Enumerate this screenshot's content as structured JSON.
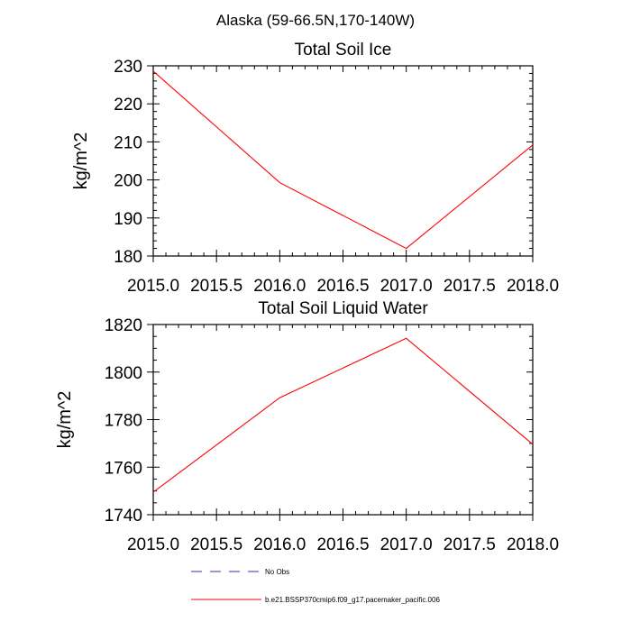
{
  "figure": {
    "suptitle": "Alaska (59-66.5N,170-140W)"
  },
  "chart_data": [
    {
      "type": "line",
      "title": "Total Soil Ice",
      "xlabel": "",
      "ylabel": "kg/m^2",
      "xlim": [
        2015.0,
        2018.0
      ],
      "ylim": [
        180,
        230
      ],
      "xticks": [
        "2015.0",
        "2015.5",
        "2016.0",
        "2016.5",
        "2017.0",
        "2017.5",
        "2018.0"
      ],
      "yticks": [
        "180",
        "190",
        "200",
        "210",
        "220",
        "230"
      ],
      "series": [
        {
          "name": "b.e21.BSSP370cmip6.f09_g17.pacemaker_pacific.006",
          "color": "#ff0000",
          "x": [
            2015,
            2016,
            2017,
            2018
          ],
          "y": [
            228.6,
            199.3,
            182.0,
            209.2
          ]
        }
      ]
    },
    {
      "type": "line",
      "title": "Total Soil Liquid Water",
      "xlabel": "",
      "ylabel": "kg/m^2",
      "xlim": [
        2015.0,
        2018.0
      ],
      "ylim": [
        1740,
        1820
      ],
      "xticks": [
        "2015.0",
        "2015.5",
        "2016.0",
        "2016.5",
        "2017.0",
        "2017.5",
        "2018.0"
      ],
      "yticks": [
        "1740",
        "1760",
        "1780",
        "1800",
        "1820"
      ],
      "series": [
        {
          "name": "b.e21.BSSP370cmip6.f09_g17.pacemaker_pacific.006",
          "color": "#ff0000",
          "x": [
            2015,
            2016,
            2017,
            2018
          ],
          "y": [
            1749.5,
            1789.2,
            1814.2,
            1769.6
          ]
        }
      ]
    }
  ],
  "legend": {
    "placement": "bottom",
    "items": [
      {
        "label": "No Obs",
        "color": "#3333aa",
        "style": "dashed"
      },
      {
        "label": "b.e21.BSSP370cmip6.f09_g17.pacemaker_pacific.006",
        "color": "#ff0000",
        "style": "solid"
      }
    ]
  }
}
